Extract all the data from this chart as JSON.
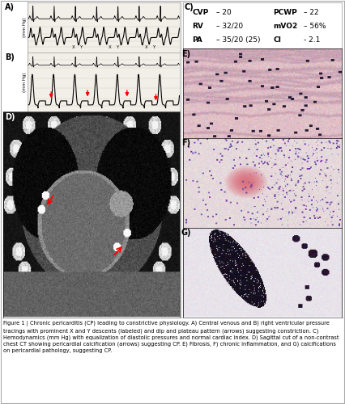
{
  "caption": "Figure 1 | Chronic pericarditis (CP) leading to constrictive physiology. A) Central venous and B) right ventricular pressure tracings with prominent X and Y descents (labeled) and dip and plateau pattern (arrows) suggesting constriction. C) Hemodynamics (mm Hg) with equalization of diastolic pressures and normal cardiac index. D) Sagittal cut of a non-contrast chest CT showing pericardial calcification (arrows) suggesting CP. E) Fibrosis, F) chronic inflammation, and G) calcifications on pericardial pathology, suggesting CP.",
  "hemo_left": [
    "CVP",
    "RV",
    "PA"
  ],
  "hemo_left_vals": [
    "– 20",
    "– 32/20",
    "– 35/20 (25)"
  ],
  "hemo_right_keys": [
    "PCWP",
    "mVO2",
    "CI"
  ],
  "hemo_right_vals": [
    "– 22",
    "– 56%",
    "- 2.1"
  ],
  "bg_color": "#ffffff"
}
